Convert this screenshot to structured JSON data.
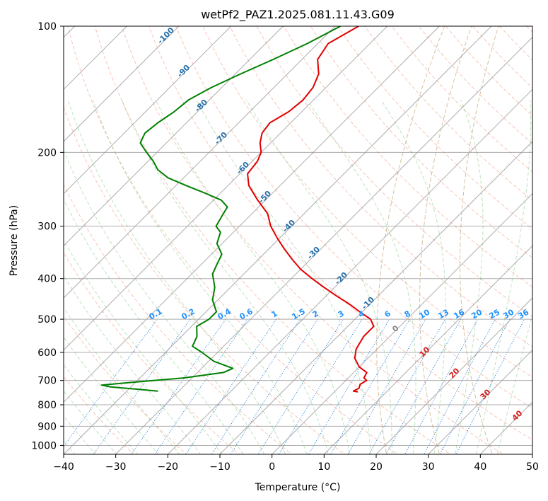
{
  "chart_data": {
    "type": "line",
    "title": "wetPf2_PAZ1.2025.081.11.43.G09",
    "xlabel": "Temperature (°C)",
    "ylabel": "Pressure (hPa)",
    "xlim": [
      -40,
      50
    ],
    "ylim": [
      1050,
      100
    ],
    "y_scale": "log",
    "skew": true,
    "x_ticks": [
      -40,
      -30,
      -20,
      -10,
      0,
      10,
      20,
      30,
      40,
      50
    ],
    "y_ticks": [
      100,
      200,
      300,
      400,
      500,
      600,
      700,
      800,
      900,
      1000
    ],
    "grid": true,
    "series": [
      {
        "color": "#e00000",
        "points": [
          [
            100,
            -65.5
          ],
          [
            110,
            -68
          ],
          [
            120,
            -67
          ],
          [
            130,
            -64
          ],
          [
            140,
            -62.5
          ],
          [
            150,
            -62
          ],
          [
            160,
            -62.5
          ],
          [
            170,
            -64
          ],
          [
            180,
            -63.5
          ],
          [
            190,
            -62
          ],
          [
            200,
            -60
          ],
          [
            210,
            -59
          ],
          [
            225,
            -58.5
          ],
          [
            240,
            -56
          ],
          [
            260,
            -51.5
          ],
          [
            280,
            -47
          ],
          [
            300,
            -44
          ],
          [
            320,
            -40.5
          ],
          [
            340,
            -37
          ],
          [
            360,
            -33.5
          ],
          [
            380,
            -30
          ],
          [
            400,
            -26
          ],
          [
            420,
            -22
          ],
          [
            440,
            -18
          ],
          [
            460,
            -14
          ],
          [
            480,
            -10.5
          ],
          [
            500,
            -7
          ],
          [
            520,
            -5
          ],
          [
            550,
            -5
          ],
          [
            590,
            -4
          ],
          [
            620,
            -2.5
          ],
          [
            650,
            0
          ],
          [
            670,
            2.5
          ],
          [
            690,
            3
          ],
          [
            700,
            4
          ],
          [
            715,
            3.5
          ],
          [
            730,
            4
          ],
          [
            742,
            3.5
          ],
          [
            745,
            4.5
          ]
        ]
      },
      {
        "color": "#008000",
        "points": [
          [
            100,
            -69
          ],
          [
            110,
            -72
          ],
          [
            120,
            -75.5
          ],
          [
            130,
            -79
          ],
          [
            140,
            -82
          ],
          [
            150,
            -84
          ],
          [
            160,
            -84.5
          ],
          [
            170,
            -85.5
          ],
          [
            180,
            -86
          ],
          [
            190,
            -85
          ],
          [
            200,
            -82
          ],
          [
            210,
            -79
          ],
          [
            220,
            -76.5
          ],
          [
            230,
            -73
          ],
          [
            240,
            -68
          ],
          [
            250,
            -63
          ],
          [
            260,
            -58.5
          ],
          [
            270,
            -56
          ],
          [
            280,
            -55.5
          ],
          [
            300,
            -54.5
          ],
          [
            310,
            -52.5
          ],
          [
            330,
            -51
          ],
          [
            350,
            -48
          ],
          [
            370,
            -47
          ],
          [
            390,
            -46
          ],
          [
            420,
            -43
          ],
          [
            450,
            -41
          ],
          [
            480,
            -38
          ],
          [
            500,
            -38
          ],
          [
            520,
            -39
          ],
          [
            550,
            -37
          ],
          [
            580,
            -36
          ],
          [
            600,
            -33
          ],
          [
            630,
            -29
          ],
          [
            655,
            -24
          ],
          [
            670,
            -25
          ],
          [
            690,
            -31.5
          ],
          [
            710,
            -42
          ],
          [
            718,
            -46
          ],
          [
            725,
            -44
          ],
          [
            735,
            -38
          ],
          [
            742,
            -34
          ]
        ]
      }
    ],
    "labels": {
      "mixing_ratio": [
        "0.1",
        "0.2",
        "0.4",
        "0.6",
        "1",
        "1.5",
        "2",
        "3",
        "4",
        "6",
        "8",
        "10",
        "13",
        "16",
        "20",
        "25",
        "30",
        "36"
      ],
      "isotherms_blue": [
        "-100",
        "-90",
        "-80",
        "-70",
        "-60",
        "-50",
        "-40",
        "-30",
        "-20",
        "-10"
      ],
      "isotherm_zero": "0",
      "isotherms_red": [
        "10",
        "20",
        "30",
        "40"
      ]
    }
  }
}
